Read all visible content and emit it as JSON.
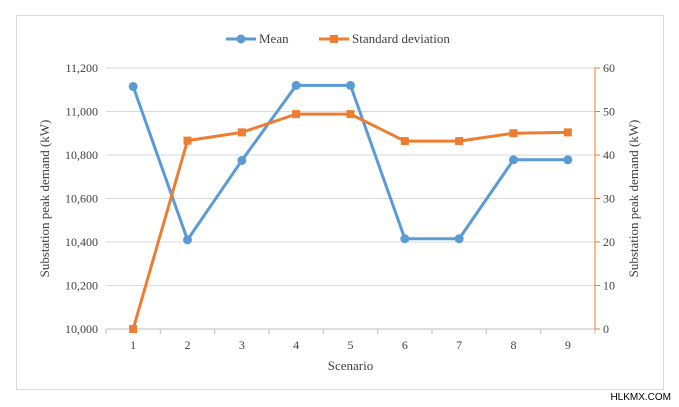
{
  "chart_data": {
    "type": "line",
    "categories": [
      "1",
      "2",
      "3",
      "4",
      "5",
      "6",
      "7",
      "8",
      "9"
    ],
    "xlabel": "Scenario",
    "ylabel_left": "Substation peak demand (kW)",
    "ylabel_right": "Substation peak demand (kW)",
    "y_left": {
      "min": 10000,
      "max": 11200,
      "step": 200,
      "tick_labels": [
        "10,000",
        "10,200",
        "10,400",
        "10,600",
        "10,800",
        "11,000",
        "11,200"
      ]
    },
    "y_right": {
      "min": 0,
      "max": 60,
      "step": 10,
      "tick_labels": [
        "0",
        "10",
        "20",
        "30",
        "40",
        "50",
        "60"
      ]
    },
    "grid": true,
    "legend_position": "top",
    "series": [
      {
        "name": "Mean",
        "axis": "left",
        "color": "#5b9bd5",
        "marker": "circle",
        "values": [
          11115,
          10410,
          10775,
          11120,
          11120,
          10415,
          10415,
          10778,
          10778
        ]
      },
      {
        "name": "Standard deviation",
        "axis": "right",
        "color": "#ed7d31",
        "marker": "square",
        "values": [
          0,
          43.3,
          45.2,
          49.4,
          49.4,
          43.2,
          43.2,
          45.0,
          45.2
        ]
      }
    ]
  },
  "watermark": "HLKMX.COM"
}
